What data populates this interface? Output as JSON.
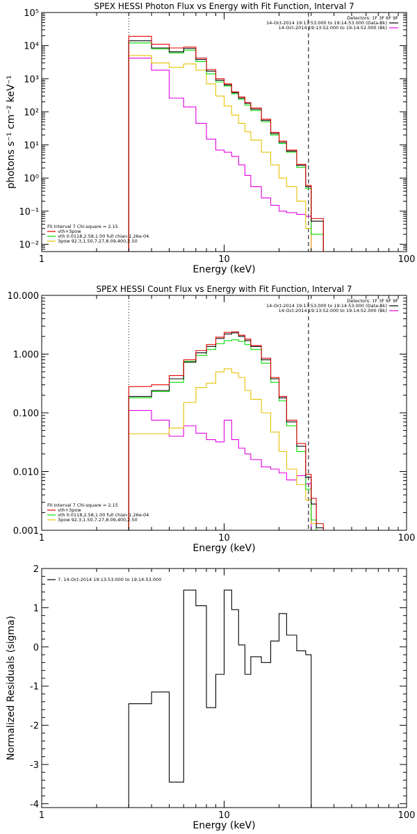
{
  "colors": {
    "total": "#000000",
    "sum": "#e00000",
    "vth": "#00dd00",
    "pow": "#e6c000",
    "bk": "#e000e0",
    "axis": "#000000"
  },
  "chart_data": [
    {
      "id": "photon",
      "type": "line",
      "title": "SPEX HESSI Photon Flux vs Energy with Fit Function, Interval 7",
      "xlabel": "Energy (keV)",
      "ylabel": "photons s⁻¹ cm⁻² keV⁻¹",
      "xscale": "log",
      "yscale": "log",
      "xlim": [
        1,
        100
      ],
      "ylim": [
        0.006,
        100000
      ],
      "x_ticks": [
        {
          "v": 1,
          "label": "1"
        },
        {
          "v": 10,
          "label": "10"
        },
        {
          "v": 100,
          "label": "100"
        }
      ],
      "y_ticks": [
        {
          "v": 0.01,
          "label": "10⁻²"
        },
        {
          "v": 0.1,
          "label": "10⁻¹"
        },
        {
          "v": 1,
          "label": "10⁰"
        },
        {
          "v": 10,
          "label": "10¹"
        },
        {
          "v": 100,
          "label": "10²"
        },
        {
          "v": 1000,
          "label": "10³"
        },
        {
          "v": 10000,
          "label": "10⁴"
        },
        {
          "v": 100000,
          "label": "10⁵"
        }
      ],
      "edges": [
        3,
        4,
        5,
        6,
        7,
        8,
        9,
        10,
        11,
        12,
        13,
        14,
        16,
        18,
        20,
        22,
        25,
        28,
        30,
        35
      ],
      "series": [
        {
          "key": "total",
          "values": [
            14000,
            8500,
            6500,
            8200,
            3800,
            1700,
            900,
            650,
            380,
            260,
            180,
            120,
            55,
            22,
            12,
            6.5,
            2.4,
            0.55,
            0.05
          ]
        },
        {
          "key": "sum",
          "values": [
            19000,
            11000,
            8500,
            9000,
            4200,
            1900,
            1000,
            700,
            400,
            280,
            190,
            130,
            60,
            24,
            13,
            7,
            2.6,
            0.6,
            0.06
          ]
        },
        {
          "key": "vth",
          "values": [
            12000,
            8000,
            6000,
            7300,
            3300,
            1400,
            800,
            600,
            350,
            240,
            160,
            110,
            50,
            20,
            11,
            6,
            2.1,
            0.48,
            0.02
          ]
        },
        {
          "key": "pow",
          "values": [
            5000,
            3000,
            2200,
            2800,
            1800,
            700,
            300,
            150,
            80,
            45,
            25,
            14,
            6,
            2.5,
            1,
            0.55,
            0.2,
            0.03,
            0.005
          ]
        },
        {
          "key": "bk",
          "values": [
            4200,
            1800,
            260,
            140,
            45,
            15,
            7,
            6,
            4.5,
            2.5,
            1.2,
            0.55,
            0.25,
            0.15,
            0.1,
            0.09,
            0.08,
            0.07,
            0.003
          ]
        }
      ],
      "vlines": [
        {
          "x": 3,
          "style": "dotted"
        },
        {
          "x": 29,
          "style": "dashed"
        }
      ],
      "header": [
        "Detectors: 1F 3F 6F 9F",
        "14-Oct-2014 19:13:53.000 to 19:14:53.000 (Data-Bk)",
        "14-Oct-2014 19:13:52.000 to 19:14:52.000 (Bk)"
      ],
      "header_marks": [
        "total",
        "bk"
      ],
      "legend": {
        "title": "Fit Interval 7   Chi-square = 2.15",
        "entries": [
          {
            "key": "sum",
            "label": "vth+3pow"
          },
          {
            "key": "vth",
            "label": "vth 0.0118,2.58,1.00  full chian 1.26e-04"
          },
          {
            "key": "pow",
            "label": "3pow 92.3,1.50,7.27,8.09,400,2.50"
          }
        ]
      }
    },
    {
      "id": "count",
      "type": "line",
      "title": "SPEX HESSI Count Flux vs Energy with Fit Function, Interval 7",
      "xlabel": "Energy (keV)",
      "ylabel": "",
      "xscale": "log",
      "yscale": "log",
      "xlim": [
        1,
        100
      ],
      "ylim": [
        0.001,
        10
      ],
      "x_ticks": [
        {
          "v": 1,
          "label": "1"
        },
        {
          "v": 10,
          "label": "10"
        },
        {
          "v": 100,
          "label": "100"
        }
      ],
      "y_ticks": [
        {
          "v": 0.001,
          "label": "0.001"
        },
        {
          "v": 0.01,
          "label": "0.010"
        },
        {
          "v": 0.1,
          "label": "0.100"
        },
        {
          "v": 1,
          "label": "1.000"
        },
        {
          "v": 10,
          "label": "10.000"
        }
      ],
      "edges": [
        3,
        4,
        5,
        6,
        7,
        8,
        9,
        10,
        11,
        12,
        13,
        14,
        16,
        18,
        20,
        22,
        25,
        28,
        30,
        32,
        35
      ],
      "series": [
        {
          "key": "total",
          "values": [
            0.19,
            0.24,
            0.38,
            0.73,
            1.05,
            1.35,
            1.85,
            2.2,
            2.3,
            2.0,
            1.7,
            1.35,
            0.8,
            0.38,
            0.18,
            0.07,
            0.027,
            0.008,
            0.0028,
            0.0011
          ]
        },
        {
          "key": "sum",
          "values": [
            0.28,
            0.3,
            0.43,
            0.8,
            1.15,
            1.45,
            1.95,
            2.35,
            2.4,
            2.1,
            1.8,
            1.4,
            0.85,
            0.4,
            0.19,
            0.075,
            0.03,
            0.009,
            0.0035,
            0.0013
          ]
        },
        {
          "key": "vth",
          "values": [
            0.18,
            0.23,
            0.33,
            0.75,
            0.95,
            1.2,
            1.5,
            1.7,
            1.75,
            1.65,
            1.45,
            1.2,
            0.7,
            0.33,
            0.16,
            0.06,
            0.022,
            0.005,
            0.0015,
            0.0008
          ]
        },
        {
          "key": "pow",
          "values": [
            0.044,
            0.044,
            0.055,
            0.15,
            0.27,
            0.32,
            0.5,
            0.56,
            0.48,
            0.4,
            0.24,
            0.17,
            0.1,
            0.047,
            0.022,
            0.011,
            0.006,
            0.0033,
            0.0013,
            0.0008
          ]
        },
        {
          "key": "bk",
          "values": [
            0.11,
            0.075,
            0.04,
            0.06,
            0.045,
            0.035,
            0.032,
            0.075,
            0.035,
            0.025,
            0.02,
            0.016,
            0.012,
            0.011,
            0.0095,
            0.0072,
            0.0085,
            0.0062,
            0.0008,
            0.0007
          ]
        }
      ],
      "vlines": [
        {
          "x": 3,
          "style": "dotted"
        },
        {
          "x": 29,
          "style": "dashed"
        }
      ],
      "header": [
        "Detectors: 1F 3F 6F 9F",
        "14-Oct-2014 19:13:53.000 to 19:14:53.000 (Data-Bk)",
        "14-Oct-2014 19:13:52.000 to 19:14:52.000 (Bk)"
      ],
      "header_marks": [
        "total",
        "bk"
      ],
      "legend": {
        "title": "Fit Interval 7   Chi-square = 2.15",
        "entries": [
          {
            "key": "sum",
            "label": "vth+3pow"
          },
          {
            "key": "vth",
            "label": "vth 0.0118,2.58,1.00  full chian 1.26e-04"
          },
          {
            "key": "pow",
            "label": "3pow 92.3,1.50,7.27,8.09,400,2.50"
          }
        ]
      }
    },
    {
      "id": "residuals",
      "type": "line",
      "title": "",
      "xlabel": "Energy (keV)",
      "ylabel": "Normalized Residuals (sigma)",
      "xscale": "log",
      "yscale": "linear",
      "xlim": [
        1,
        100
      ],
      "ylim": [
        -4.1,
        2
      ],
      "x_ticks": [
        {
          "v": 1,
          "label": "1"
        },
        {
          "v": 10,
          "label": "10"
        },
        {
          "v": 100,
          "label": "100"
        }
      ],
      "y_ticks": [
        {
          "v": -4,
          "label": "-4"
        },
        {
          "v": -3,
          "label": "-3"
        },
        {
          "v": -2,
          "label": "-2"
        },
        {
          "v": -1,
          "label": "-1"
        },
        {
          "v": 0,
          "label": "0"
        },
        {
          "v": 1,
          "label": "1"
        },
        {
          "v": 2,
          "label": "2"
        }
      ],
      "edges": [
        3,
        4,
        5,
        6,
        7,
        8,
        9,
        10,
        11,
        12,
        13,
        14,
        16,
        18,
        20,
        22,
        25,
        28,
        30
      ],
      "series": [
        {
          "key": "total",
          "values": [
            -1.45,
            -1.15,
            -3.45,
            1.45,
            1.05,
            -1.55,
            -0.7,
            1.45,
            0.95,
            0.05,
            -0.7,
            -0.25,
            -0.4,
            0.15,
            0.85,
            0.3,
            -0.1,
            -0.2
          ]
        }
      ],
      "vlines": [],
      "header": [],
      "header_marks": [],
      "legend": {
        "title": "",
        "entries": [
          {
            "key": "total",
            "label": "7. 14-Oct-2014 19:13:53.000 to 19:14:53.000"
          }
        ]
      }
    }
  ]
}
